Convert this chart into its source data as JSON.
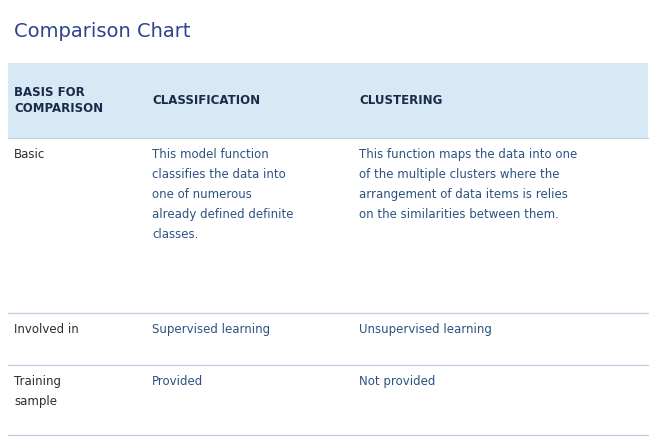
{
  "title": "Comparison Chart",
  "title_color": "#2b4490",
  "title_fontsize": 14,
  "header_bg_color": "#d6e9f5",
  "header_text_color": "#1a2a4a",
  "header_fontsize": 8.5,
  "body_text_color": "#2c5282",
  "body_fontsize": 8.5,
  "row_label_color": "#2d2d2d",
  "separator_color": "#c0cfe0",
  "bg_color": "#ffffff",
  "headers": [
    "BASIS FOR\nCOMPARISON",
    "CLASSIFICATION",
    "CLUSTERING"
  ],
  "rows": [
    {
      "label": "Basic",
      "col1": "This model function\nclassifies the data into\none of numerous\nalready defined definite\nclasses.",
      "col2": "This function maps the data into one\nof the multiple clusters where the\narrangement of data items is relies\non the similarities between them."
    },
    {
      "label": "Involved in",
      "col1": "Supervised learning",
      "col2": "Unsupervised learning"
    },
    {
      "label": "Training\nsample",
      "col1": "Provided",
      "col2": "Not provided"
    }
  ]
}
